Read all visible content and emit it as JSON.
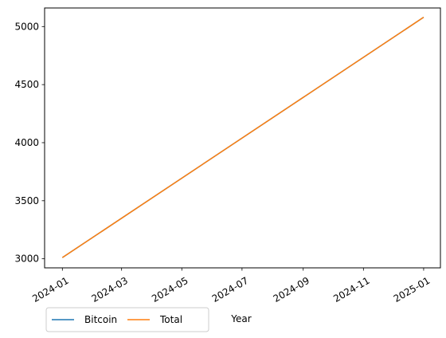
{
  "chart_data": {
    "type": "line",
    "title": "",
    "xlabel": "Year",
    "ylabel": "",
    "xlim": [
      "2023-12-14",
      "2025-01-18"
    ],
    "ylim": [
      2922,
      5160
    ],
    "grid": false,
    "legend_position": "bottom-left, outside below axes",
    "x_ticks": [
      "2024-01",
      "2024-03",
      "2024-05",
      "2024-07",
      "2024-09",
      "2024-11",
      "2025-01"
    ],
    "y_ticks": [
      3000,
      3500,
      4000,
      4500,
      5000
    ],
    "series": [
      {
        "name": "Bitcoin",
        "color": "#1f77b4",
        "x": [
          "2024-01-01",
          "2025-01-01"
        ],
        "values": [
          3010,
          5080
        ]
      },
      {
        "name": "Total",
        "color": "#ff7f0e",
        "x": [
          "2024-01-01",
          "2025-01-01"
        ],
        "values": [
          3010,
          5080
        ]
      }
    ]
  }
}
